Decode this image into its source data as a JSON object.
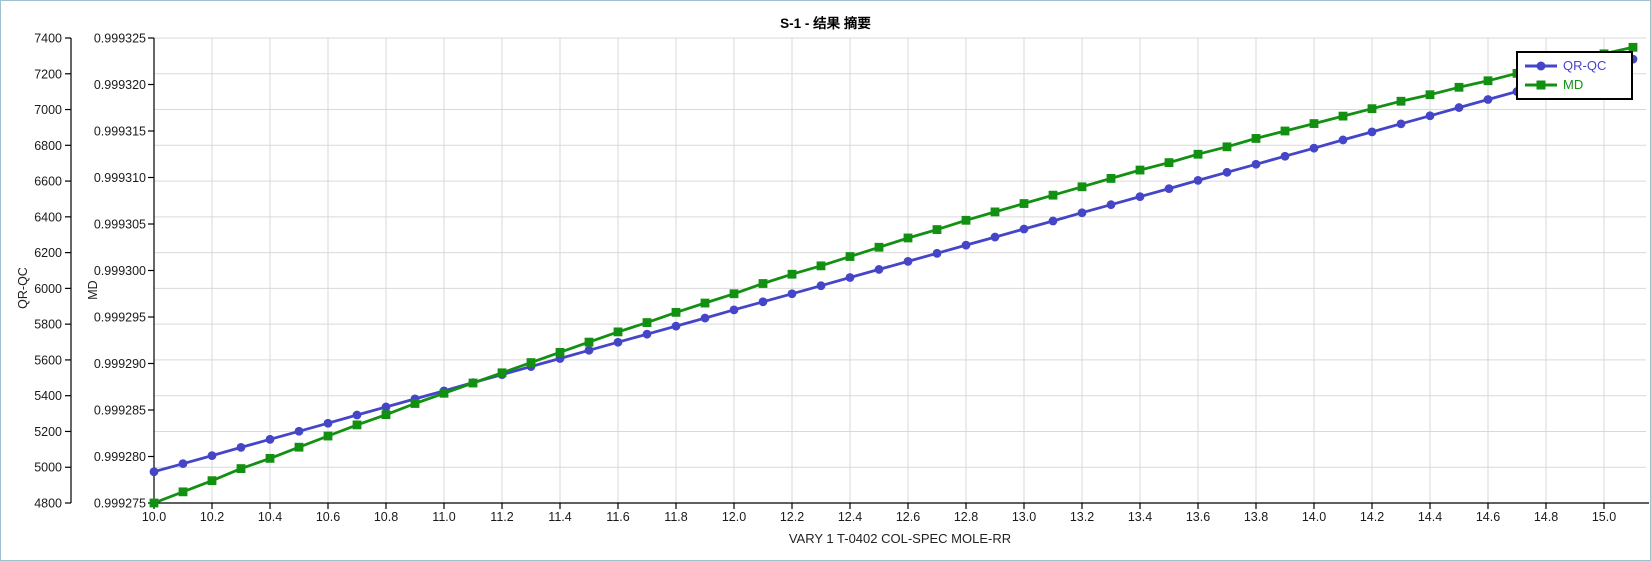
{
  "figure": {
    "title": "S-1 - 结果 摘要",
    "background": "#ffffff",
    "border_color": "#9fc0d0"
  },
  "legend": {
    "position": "top-right",
    "entries": [
      {
        "label": "QR-QC",
        "color": "#4545c8",
        "marker": "circle"
      },
      {
        "label": "MD",
        "color": "#129012",
        "marker": "square"
      }
    ]
  },
  "chart_data": {
    "type": "line",
    "title": "S-1 - 结果 摘要",
    "xlabel": "VARY   1 T-0402   COL-SPEC MOLE-RR",
    "grid": true,
    "legend_position": "top-right",
    "colors": {
      "grid": "#d9d9d9",
      "axis": "#000000",
      "tick_text": "#1a1a1a"
    },
    "x_axis": {
      "min": 10.0,
      "max": 15.145,
      "tick_step": 0.2,
      "tick_labels": [
        "10.0",
        "10.2",
        "10.4",
        "10.6",
        "10.8",
        "11.0",
        "11.2",
        "11.4",
        "11.6",
        "11.8",
        "12.0",
        "12.2",
        "12.4",
        "12.6",
        "12.8",
        "13.0",
        "13.2",
        "13.4",
        "13.6",
        "13.8",
        "14.0",
        "14.2",
        "14.4",
        "14.6",
        "14.8",
        "15.0"
      ]
    },
    "y_axis_outer": {
      "label": "QR-QC",
      "min": 4800,
      "max": 7400,
      "tick_step": 200,
      "tick_labels": [
        "4800",
        "5000",
        "5200",
        "5400",
        "5600",
        "5800",
        "6000",
        "6200",
        "6400",
        "6600",
        "6800",
        "7000",
        "7200",
        "7400"
      ]
    },
    "y_axis_inner": {
      "label": "MD",
      "min": 0.999275,
      "max": 0.999325,
      "tick_step": 5e-06,
      "tick_labels": [
        "0.999275",
        "0.999280",
        "0.999285",
        "0.999290",
        "0.999295",
        "0.999300",
        "0.999305",
        "0.999310",
        "0.999315",
        "0.999320",
        "0.999325"
      ]
    },
    "x": [
      10.0,
      10.1,
      10.2,
      10.3,
      10.4,
      10.5,
      10.6,
      10.7,
      10.8,
      10.9,
      11.0,
      11.1,
      11.2,
      11.3,
      11.4,
      11.5,
      11.6,
      11.7,
      11.8,
      11.9,
      12.0,
      12.1,
      12.2,
      12.3,
      12.4,
      12.5,
      12.6,
      12.7,
      12.8,
      12.9,
      13.0,
      13.1,
      13.2,
      13.3,
      13.4,
      13.5,
      13.6,
      13.7,
      13.8,
      13.9,
      14.0,
      14.1,
      14.2,
      14.3,
      14.4,
      14.5,
      14.6,
      14.7,
      14.8,
      14.9,
      15.0,
      15.1
    ],
    "series": [
      {
        "name": "QR-QC",
        "axis": "outer",
        "color": "#4545c8",
        "marker": "circle",
        "values": [
          4975,
          5020,
          5065,
          5111,
          5156,
          5201,
          5246,
          5292,
          5337,
          5382,
          5427,
          5473,
          5518,
          5563,
          5608,
          5654,
          5699,
          5744,
          5789,
          5834,
          5880,
          5925,
          5970,
          6015,
          6061,
          6106,
          6151,
          6196,
          6242,
          6287,
          6332,
          6377,
          6423,
          6468,
          6513,
          6558,
          6604,
          6649,
          6694,
          6739,
          6784,
          6830,
          6875,
          6920,
          6965,
          7011,
          7056,
          7101,
          7146,
          7192,
          7237,
          7282
        ]
      },
      {
        "name": "MD",
        "axis": "inner",
        "color": "#129012",
        "marker": "square",
        "values": [
          0.999275,
          0.9992762,
          0.9992774,
          0.9992787,
          0.9992798,
          0.999281,
          0.9992822,
          0.9992834,
          0.9992845,
          0.9992857,
          0.9992868,
          0.9992879,
          0.999289,
          0.9992901,
          0.9992912,
          0.9992923,
          0.9992934,
          0.9992944,
          0.9992955,
          0.9992965,
          0.9992975,
          0.9992986,
          0.9992996,
          0.9993005,
          0.9993015,
          0.9993025,
          0.9993035,
          0.9993044,
          0.9993054,
          0.9993063,
          0.9993072,
          0.9993081,
          0.999309,
          0.9993099,
          0.9993108,
          0.9993116,
          0.9993125,
          0.9993133,
          0.9993142,
          0.999315,
          0.9993158,
          0.9993166,
          0.9993174,
          0.9993182,
          0.9993189,
          0.9993197,
          0.9993204,
          0.9993212,
          0.9993219,
          0.9993226,
          0.9993233,
          0.999324
        ]
      }
    ]
  }
}
